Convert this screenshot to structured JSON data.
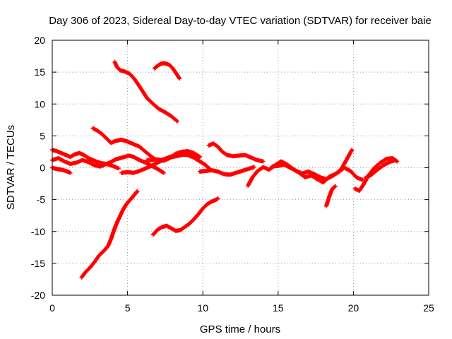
{
  "chart_data": {
    "type": "scatter",
    "title": "Day 306 of 2023, Sidereal Day-to-day VTEC variation (SDTVAR) for receiver baie",
    "xlabel": "GPS time / hours",
    "ylabel": "SDTVAR / TECUs",
    "xlim": [
      0,
      25
    ],
    "ylim": [
      -20,
      20
    ],
    "xticks": [
      0,
      5,
      10,
      15,
      20,
      25
    ],
    "yticks": [
      -20,
      -15,
      -10,
      -5,
      0,
      5,
      10,
      15,
      20
    ],
    "grid": true,
    "marker": "+",
    "color": "#ff0000",
    "series": [
      {
        "name": "arc1",
        "x": [
          4.15,
          4.3,
          4.5,
          4.8,
          5.1,
          5.4,
          5.7,
          6.0,
          6.3,
          6.7,
          7.1,
          7.5,
          7.9,
          8.3
        ],
        "y": [
          16.6,
          15.8,
          15.3,
          15.1,
          14.8,
          14.1,
          13.1,
          12.0,
          10.9,
          10.0,
          9.2,
          8.7,
          8.1,
          7.3
        ]
      },
      {
        "name": "arc2",
        "x": [
          6.8,
          7.0,
          7.2,
          7.4,
          7.6,
          7.8,
          8.0,
          8.2,
          8.45
        ],
        "y": [
          15.6,
          16.0,
          16.3,
          16.4,
          16.3,
          16.1,
          15.6,
          14.9,
          14.0
        ]
      },
      {
        "name": "arc3",
        "x": [
          2.7,
          3.0,
          3.3,
          3.6,
          3.9,
          4.2,
          4.6,
          5.0,
          5.4,
          5.8,
          6.2,
          6.6,
          7.0,
          7.4,
          7.8,
          8.2,
          8.6,
          9.0,
          9.4,
          9.8,
          10.2,
          10.5
        ],
        "y": [
          6.2,
          5.8,
          5.3,
          4.6,
          3.9,
          4.2,
          4.4,
          4.1,
          3.7,
          3.3,
          2.5,
          1.7,
          1.1,
          1.3,
          1.7,
          1.9,
          2.1,
          2.0,
          1.6,
          1.0,
          0.4,
          -0.3
        ]
      },
      {
        "name": "arc4",
        "x": [
          0.0,
          0.3,
          0.6,
          0.9,
          1.2,
          1.5,
          1.8,
          2.1,
          2.4,
          2.7,
          3.0,
          3.3,
          3.6,
          3.9,
          4.2,
          4.5,
          4.8,
          5.1,
          5.4,
          5.8,
          6.2,
          6.6,
          7.0,
          7.4
        ],
        "y": [
          2.8,
          2.6,
          2.3,
          2.0,
          1.7,
          2.1,
          2.3,
          2.0,
          1.5,
          1.2,
          0.9,
          0.7,
          0.6,
          0.9,
          1.3,
          1.5,
          1.7,
          1.9,
          1.7,
          1.2,
          0.8,
          0.3,
          -0.2,
          -0.8
        ]
      },
      {
        "name": "arc5",
        "x": [
          0.0,
          0.4,
          0.8,
          1.2,
          1.6,
          2.0,
          2.4,
          2.8,
          3.2,
          3.6,
          4.0,
          4.4
        ],
        "y": [
          1.2,
          1.5,
          1.0,
          0.6,
          0.8,
          1.2,
          0.9,
          0.4,
          0.2,
          0.6,
          0.3,
          -0.1
        ]
      },
      {
        "name": "arc6",
        "x": [
          0.0,
          0.3,
          0.6,
          0.9,
          1.2
        ],
        "y": [
          0.0,
          -0.2,
          -0.3,
          -0.5,
          -0.8
        ]
      },
      {
        "name": "arc7",
        "x": [
          4.6,
          5.0,
          5.4,
          5.8,
          6.2,
          6.6,
          7.0,
          7.4,
          7.8,
          8.2,
          8.6,
          9.0,
          9.4,
          9.8
        ],
        "y": [
          -0.8,
          -0.7,
          -0.8,
          -0.5,
          -0.1,
          0.3,
          0.8,
          1.3,
          1.6,
          1.8,
          2.0,
          2.2,
          2.0,
          1.7
        ]
      },
      {
        "name": "arc8",
        "x": [
          6.3,
          6.6,
          7.0,
          7.4,
          7.8,
          8.2,
          8.6,
          9.0,
          9.4,
          9.8
        ],
        "y": [
          1.2,
          1.2,
          1.3,
          1.1,
          1.5,
          2.2,
          2.5,
          2.6,
          2.3,
          1.7
        ]
      },
      {
        "name": "arc9",
        "x": [
          9.8,
          10.2,
          10.6,
          11.0,
          11.4,
          11.8,
          12.2,
          12.6,
          13.0,
          13.4
        ],
        "y": [
          -0.6,
          -0.5,
          -0.4,
          -0.6,
          -1.0,
          -1.1,
          -0.8,
          -0.5,
          -0.2,
          0.1
        ]
      },
      {
        "name": "arc10",
        "x": [
          10.4,
          10.7,
          11.0,
          11.3,
          11.6,
          12.0,
          12.4,
          12.8,
          13.2,
          13.6,
          14.0
        ],
        "y": [
          3.5,
          3.8,
          3.3,
          2.5,
          2.0,
          1.8,
          1.9,
          2.0,
          1.6,
          1.2,
          1.0
        ]
      },
      {
        "name": "arc11",
        "x": [
          13.0,
          13.3,
          13.6,
          14.0,
          14.4,
          14.8,
          15.2,
          15.6,
          16.0,
          16.4,
          16.8,
          17.2,
          17.6,
          18.0,
          18.4,
          18.8,
          19.2,
          19.6,
          19.9
        ],
        "y": [
          -2.8,
          -1.5,
          -0.6,
          0.1,
          -0.3,
          0.4,
          1.0,
          0.5,
          -0.2,
          -0.8,
          -1.5,
          -1.2,
          -1.8,
          -2.3,
          -1.4,
          -1.0,
          -0.2,
          1.5,
          2.8
        ]
      },
      {
        "name": "arc12",
        "x": [
          14.6,
          15.0,
          15.4,
          15.8,
          16.2,
          16.6,
          17.0,
          17.4,
          17.8,
          18.2,
          18.6,
          19.0,
          19.4,
          19.8,
          20.2,
          20.6
        ],
        "y": [
          0.2,
          0.3,
          0.5,
          0.0,
          -0.5,
          -0.9,
          -0.6,
          -1.0,
          -1.5,
          -1.8,
          -1.3,
          -0.7,
          0.0,
          -0.5,
          -1.5,
          -1.9
        ]
      },
      {
        "name": "arc13",
        "x": [
          18.2,
          18.4,
          18.6,
          18.8
        ],
        "y": [
          -6.0,
          -4.5,
          -3.3,
          -2.9
        ]
      },
      {
        "name": "arc14",
        "x": [
          20.1,
          20.4,
          20.7,
          21.0,
          21.4,
          21.8,
          22.2,
          22.6,
          22.9
        ],
        "y": [
          -3.3,
          -3.6,
          -2.5,
          -1.2,
          0.0,
          0.8,
          1.4,
          1.5,
          1.0
        ]
      },
      {
        "name": "arc15",
        "x": [
          20.8,
          21.2,
          21.6,
          22.0,
          22.4,
          22.8
        ],
        "y": [
          -1.6,
          -1.1,
          -0.3,
          0.4,
          0.9,
          1.2
        ]
      },
      {
        "name": "arc16",
        "x": [
          1.95,
          2.2,
          2.5,
          2.8,
          3.1,
          3.4,
          3.7,
          3.9,
          4.1,
          4.3,
          4.5,
          4.7,
          4.9,
          5.1,
          5.3,
          5.5,
          5.65
        ],
        "y": [
          -17.2,
          -16.4,
          -15.7,
          -14.8,
          -13.8,
          -13.1,
          -12.3,
          -11.2,
          -9.8,
          -8.6,
          -7.6,
          -6.6,
          -5.8,
          -5.2,
          -4.7,
          -4.1,
          -3.7
        ]
      },
      {
        "name": "arc17",
        "x": [
          6.7,
          7.0,
          7.3,
          7.6,
          7.9,
          8.2,
          8.5,
          8.8,
          9.1,
          9.4,
          9.7,
          10.0,
          10.3,
          10.6,
          10.9,
          11.0
        ],
        "y": [
          -10.5,
          -9.7,
          -9.3,
          -9.1,
          -9.5,
          -9.9,
          -9.8,
          -9.3,
          -8.8,
          -8.1,
          -7.3,
          -6.4,
          -5.7,
          -5.3,
          -5.0,
          -4.8
        ]
      }
    ]
  }
}
